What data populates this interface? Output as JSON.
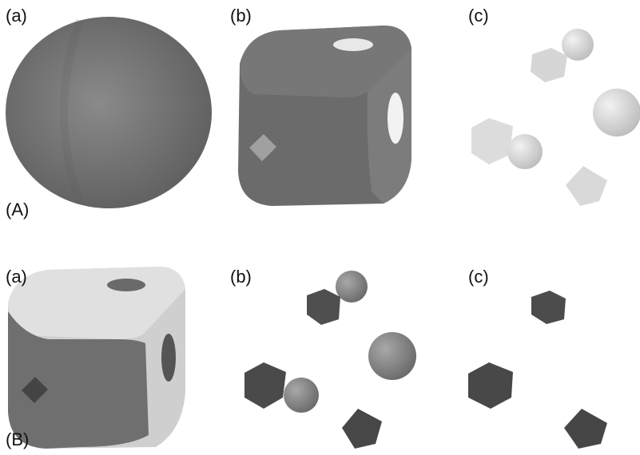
{
  "figure": {
    "row_labels": {
      "A": "(A)",
      "B": "(B)"
    },
    "panel_labels": {
      "A_a": "(a)",
      "A_b": "(b)",
      "A_c": "(c)",
      "B_a": "(a)",
      "B_b": "(b)",
      "B_c": "(c)"
    }
  },
  "colors": {
    "background": "#ffffff",
    "grey_object": "#6f6f6f",
    "dark_object": "#4a4a4a",
    "light_object": "#d8d8d8"
  }
}
